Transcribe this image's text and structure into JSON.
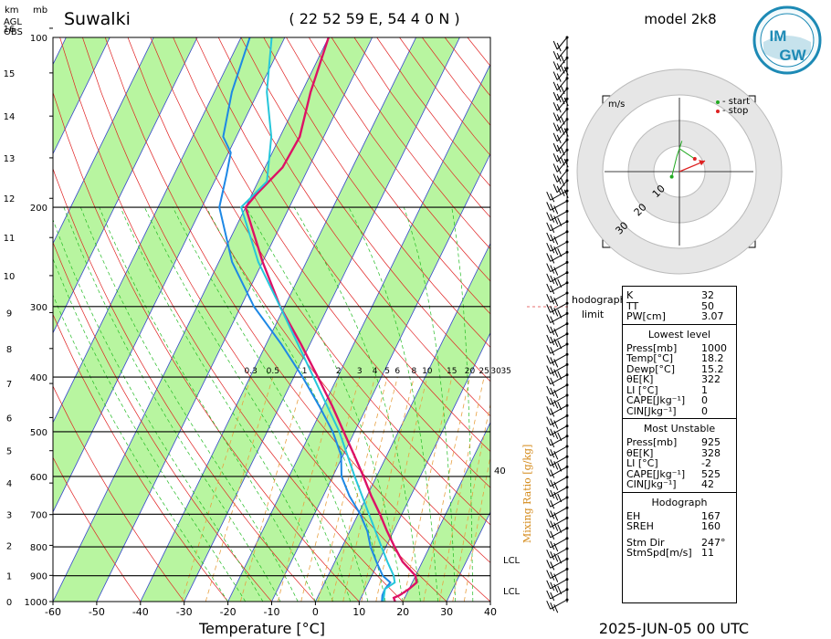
{
  "header": {
    "station": "Suwalki",
    "coords": "( 22 52 59 E, 54 4 0 N )",
    "model": "model 2k8",
    "logo_top": "IM",
    "logo_bottom": "GW"
  },
  "axis_labels": {
    "km": "km",
    "agl": "AGL",
    "obs": "OBS",
    "mb": "mb",
    "xlabel": "Temperature [°C]",
    "mixing": "Mixing Ratio [g/kg]",
    "date": "2025-JUN-05  00 UTC",
    "lcl1": "LCL",
    "lcl2": "LCL",
    "hodo_limit_1": "hodograph",
    "hodo_limit_2": "limit",
    "cape_tick": "40"
  },
  "hodograph": {
    "unit": "m/s",
    "start_label": "- start",
    "stop_label": "- stop",
    "ring_labels": [
      "10",
      "20",
      "30"
    ],
    "start_color": "#22aa22",
    "stop_color": "#dd2222",
    "trace_uv": [
      [
        -3,
        -2
      ],
      [
        -1,
        6
      ],
      [
        1,
        12
      ],
      [
        0,
        9
      ],
      [
        3,
        7
      ],
      [
        6,
        5
      ]
    ],
    "storm_motion_uv": [
      10,
      4.2
    ]
  },
  "indices": {
    "top": [
      {
        "k": "K",
        "v": "32"
      },
      {
        "k": "TT",
        "v": "50"
      },
      {
        "k": "PW[cm]",
        "v": "3.07"
      }
    ],
    "lowest_title": "Lowest level",
    "lowest": [
      {
        "k": "Press[mb]",
        "v": "1000"
      },
      {
        "k": "Temp[°C]",
        "v": "18.2"
      },
      {
        "k": "Dewp[°C]",
        "v": "15.2"
      },
      {
        "k": "θE[K]",
        "v": "322"
      },
      {
        "k": "LI [°C]",
        "v": "1"
      },
      {
        "k": "CAPE[Jkg⁻¹]",
        "v": "0"
      },
      {
        "k": "CIN[Jkg⁻¹]",
        "v": "0"
      }
    ],
    "mu_title": "Most Unstable",
    "mu": [
      {
        "k": "Press[mb]",
        "v": "925"
      },
      {
        "k": "θE[K]",
        "v": "328"
      },
      {
        "k": "LI [°C]",
        "v": "-2"
      },
      {
        "k": "CAPE[Jkg⁻¹]",
        "v": "525"
      },
      {
        "k": "CIN[Jkg⁻¹]",
        "v": "42"
      }
    ],
    "hodo_title": "Hodograph",
    "hodo": [
      {
        "k": "EH",
        "v": "167"
      },
      {
        "k": "SREH",
        "v": "160"
      },
      {
        "k": "Stm Dir",
        "v": "247°"
      },
      {
        "k": "StmSpd[m/s]",
        "v": "11"
      }
    ]
  },
  "chart_data": {
    "type": "line",
    "title": "Suwalki",
    "xlabel": "Temperature [°C]",
    "ylabel": "mb",
    "xlim": [
      -60,
      40
    ],
    "ylim_pressure": [
      1000,
      100
    ],
    "log_pressure": true,
    "x_ticks": [
      -60,
      -50,
      -40,
      -30,
      -20,
      -10,
      0,
      10,
      20,
      30,
      40
    ],
    "pressure_ticks": [
      100,
      200,
      300,
      400,
      500,
      600,
      700,
      800,
      900,
      1000
    ],
    "height_ticks_km": [
      0,
      1,
      2,
      3,
      4,
      5,
      6,
      7,
      8,
      9,
      10,
      11,
      12,
      13,
      14,
      15,
      16
    ],
    "mixing_ratio_ticks": [
      "0.3",
      "0.5",
      "1",
      "2",
      "3",
      "4",
      "5",
      "6",
      "8",
      "10",
      "15",
      "20",
      "25",
      "30",
      "35"
    ],
    "skew_degC": 63,
    "series": [
      {
        "name": "Temperature",
        "color": "#dd1166",
        "points": [
          [
            1000,
            18.2
          ],
          [
            985,
            17.5
          ],
          [
            975,
            18.5
          ],
          [
            950,
            20.0
          ],
          [
            925,
            21.0
          ],
          [
            900,
            20.0
          ],
          [
            850,
            15.5
          ],
          [
            800,
            12.0
          ],
          [
            750,
            8.5
          ],
          [
            700,
            5.0
          ],
          [
            650,
            1.0
          ],
          [
            600,
            -3.0
          ],
          [
            550,
            -7.5
          ],
          [
            500,
            -12.5
          ],
          [
            450,
            -18.0
          ],
          [
            400,
            -24.5
          ],
          [
            350,
            -32.0
          ],
          [
            300,
            -41.0
          ],
          [
            250,
            -50.0
          ],
          [
            200,
            -60.0
          ],
          [
            190,
            -59.0
          ],
          [
            170,
            -56.0
          ],
          [
            150,
            -55.5
          ],
          [
            125,
            -58.0
          ],
          [
            100,
            -60.0
          ]
        ]
      },
      {
        "name": "Dew point",
        "color": "#1e88e5",
        "points": [
          [
            1000,
            15.2
          ],
          [
            975,
            14.6
          ],
          [
            950,
            14.5
          ],
          [
            925,
            15.0
          ],
          [
            900,
            12.5
          ],
          [
            850,
            9.5
          ],
          [
            800,
            6.5
          ],
          [
            750,
            4.0
          ],
          [
            700,
            0.5
          ],
          [
            650,
            -4.0
          ],
          [
            600,
            -8.0
          ],
          [
            550,
            -10.5
          ],
          [
            500,
            -15.0
          ],
          [
            450,
            -21.0
          ],
          [
            400,
            -28.0
          ],
          [
            350,
            -36.5
          ],
          [
            300,
            -47.0
          ],
          [
            250,
            -57.0
          ],
          [
            200,
            -66.0
          ],
          [
            175,
            -68.0
          ],
          [
            160,
            -69.5
          ],
          [
            150,
            -73.0
          ],
          [
            125,
            -76.0
          ],
          [
            100,
            -78.0
          ]
        ]
      },
      {
        "name": "Parcel",
        "color": "#26c6da",
        "points": [
          [
            1000,
            15.5
          ],
          [
            950,
            14.5
          ],
          [
            925,
            16.0
          ],
          [
            900,
            15.0
          ],
          [
            850,
            12.0
          ],
          [
            800,
            9.0
          ],
          [
            700,
            2.5
          ],
          [
            600,
            -5.0
          ],
          [
            500,
            -13.5
          ],
          [
            400,
            -25.5
          ],
          [
            300,
            -41.0
          ],
          [
            250,
            -51.0
          ],
          [
            200,
            -61.0
          ],
          [
            180,
            -58.0
          ],
          [
            150,
            -62.0
          ],
          [
            125,
            -68.0
          ],
          [
            100,
            -73.0
          ]
        ]
      }
    ]
  }
}
